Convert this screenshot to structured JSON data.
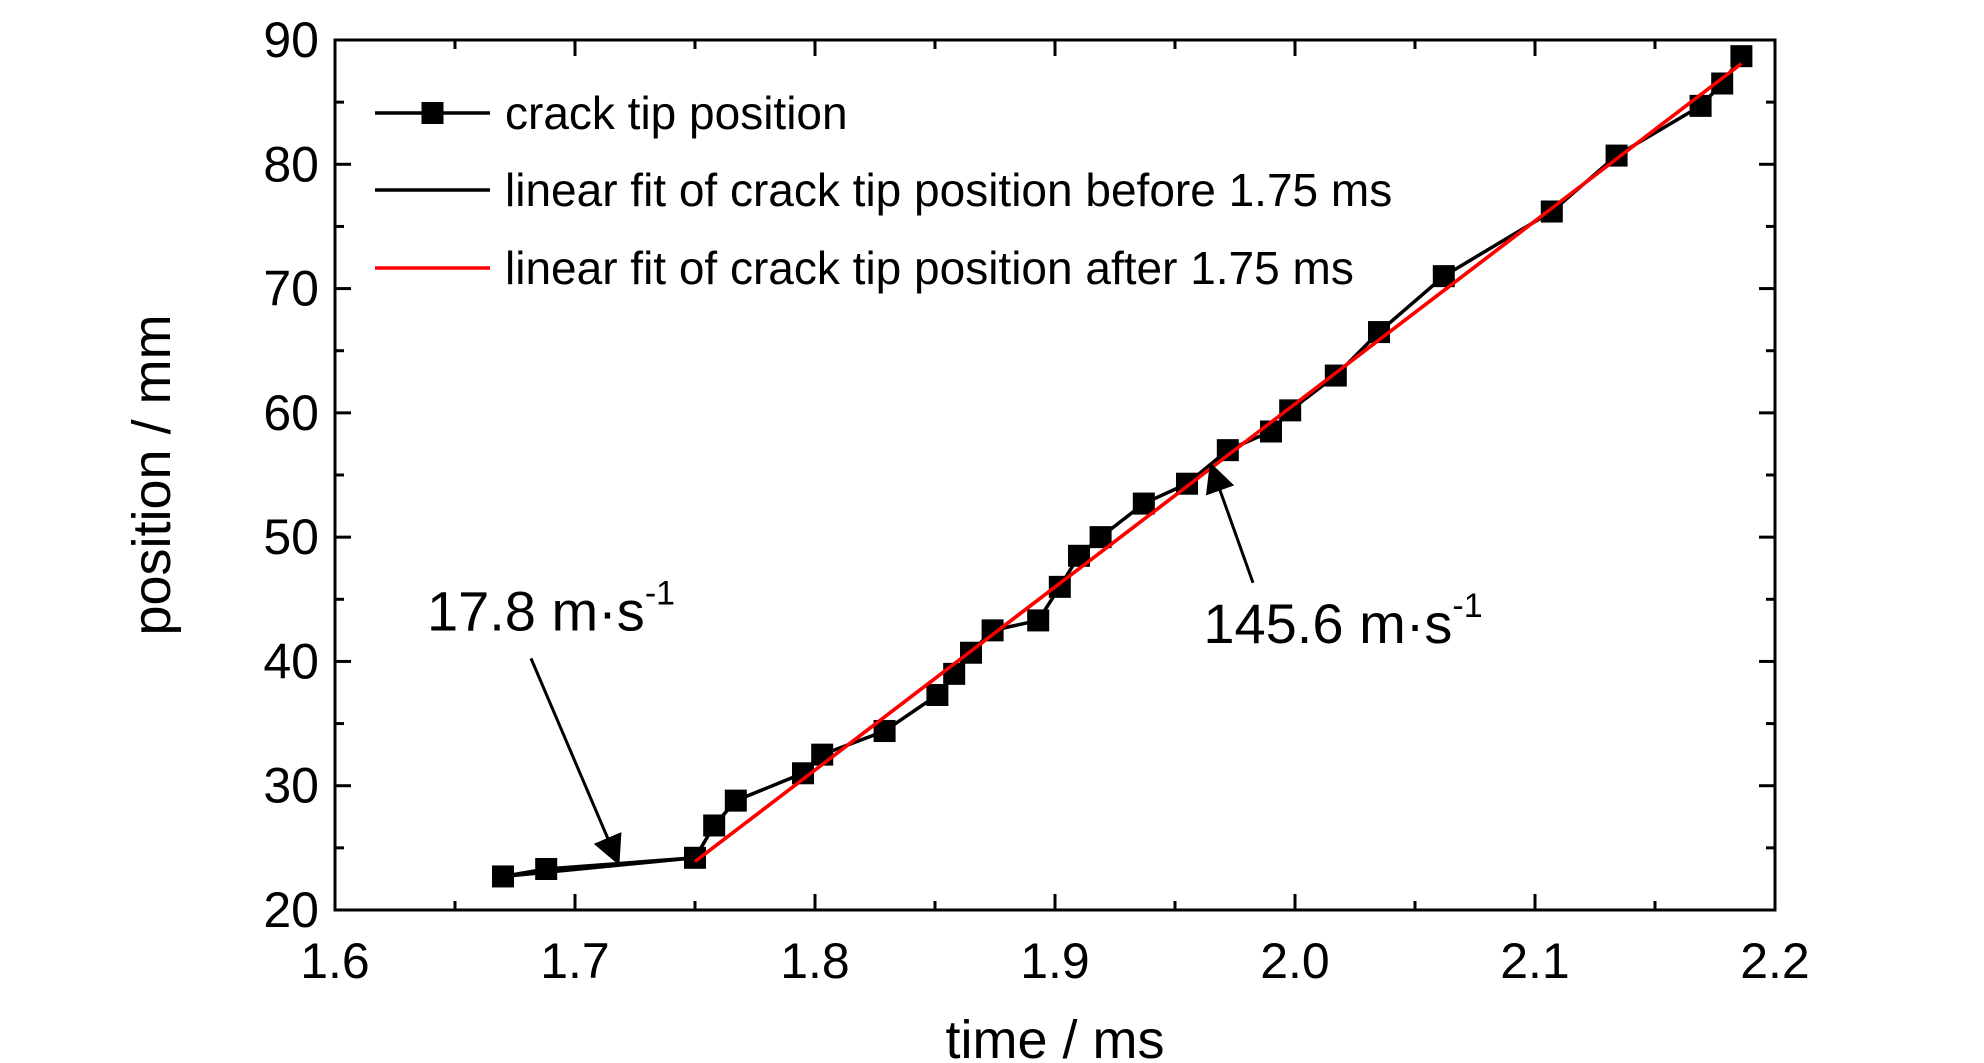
{
  "chart_data": {
    "type": "line",
    "xlabel": "time / ms",
    "ylabel": "position / mm",
    "xlim": [
      1.6,
      2.2
    ],
    "ylim": [
      20,
      90
    ],
    "x_ticks": [
      "1.6",
      "1.7",
      "1.8",
      "1.9",
      "2.0",
      "2.1",
      "2.2"
    ],
    "y_ticks": [
      "20",
      "30",
      "40",
      "50",
      "60",
      "70",
      "80",
      "90"
    ],
    "grid": false,
    "legend_position": "top-left",
    "series": [
      {
        "name": "crack tip position",
        "style": "line-with-square-markers",
        "color": "#000000",
        "points": [
          [
            1.67,
            22.7
          ],
          [
            1.688,
            23.3
          ],
          [
            1.75,
            24.2
          ],
          [
            1.758,
            26.8
          ],
          [
            1.767,
            28.8
          ],
          [
            1.795,
            31.0
          ],
          [
            1.803,
            32.5
          ],
          [
            1.829,
            34.4
          ],
          [
            1.851,
            37.3
          ],
          [
            1.858,
            39.0
          ],
          [
            1.865,
            40.7
          ],
          [
            1.874,
            42.5
          ],
          [
            1.893,
            43.3
          ],
          [
            1.902,
            46.0
          ],
          [
            1.91,
            48.5
          ],
          [
            1.919,
            50.0
          ],
          [
            1.937,
            52.7
          ],
          [
            1.955,
            54.3
          ],
          [
            1.972,
            57.0
          ],
          [
            1.99,
            58.5
          ],
          [
            1.998,
            60.2
          ],
          [
            2.017,
            63.0
          ],
          [
            2.035,
            66.5
          ],
          [
            2.062,
            71.0
          ],
          [
            2.107,
            76.2
          ],
          [
            2.134,
            80.7
          ],
          [
            2.169,
            84.7
          ],
          [
            2.178,
            86.5
          ],
          [
            2.186,
            88.7
          ]
        ]
      },
      {
        "name": "linear fit of crack tip position before 1.75 ms",
        "style": "line",
        "color": "#000000",
        "points": [
          [
            1.67,
            22.7
          ],
          [
            1.75,
            24.2
          ]
        ]
      },
      {
        "name": "linear fit of crack tip position after 1.75 ms",
        "style": "line",
        "color": "#ff0000",
        "points": [
          [
            1.75,
            23.9
          ],
          [
            2.186,
            88.1
          ]
        ]
      }
    ],
    "annotations": [
      {
        "text": "17.8 m·s",
        "superscript": "-1",
        "arrow_to": [
          1.718,
          23.8
        ],
        "label_at": [
          1.69,
          42.5
        ]
      },
      {
        "text": "145.6 m·s",
        "superscript": "-1",
        "arrow_to": [
          1.965,
          55.8
        ],
        "label_at": [
          2.02,
          41.5
        ]
      }
    ]
  }
}
